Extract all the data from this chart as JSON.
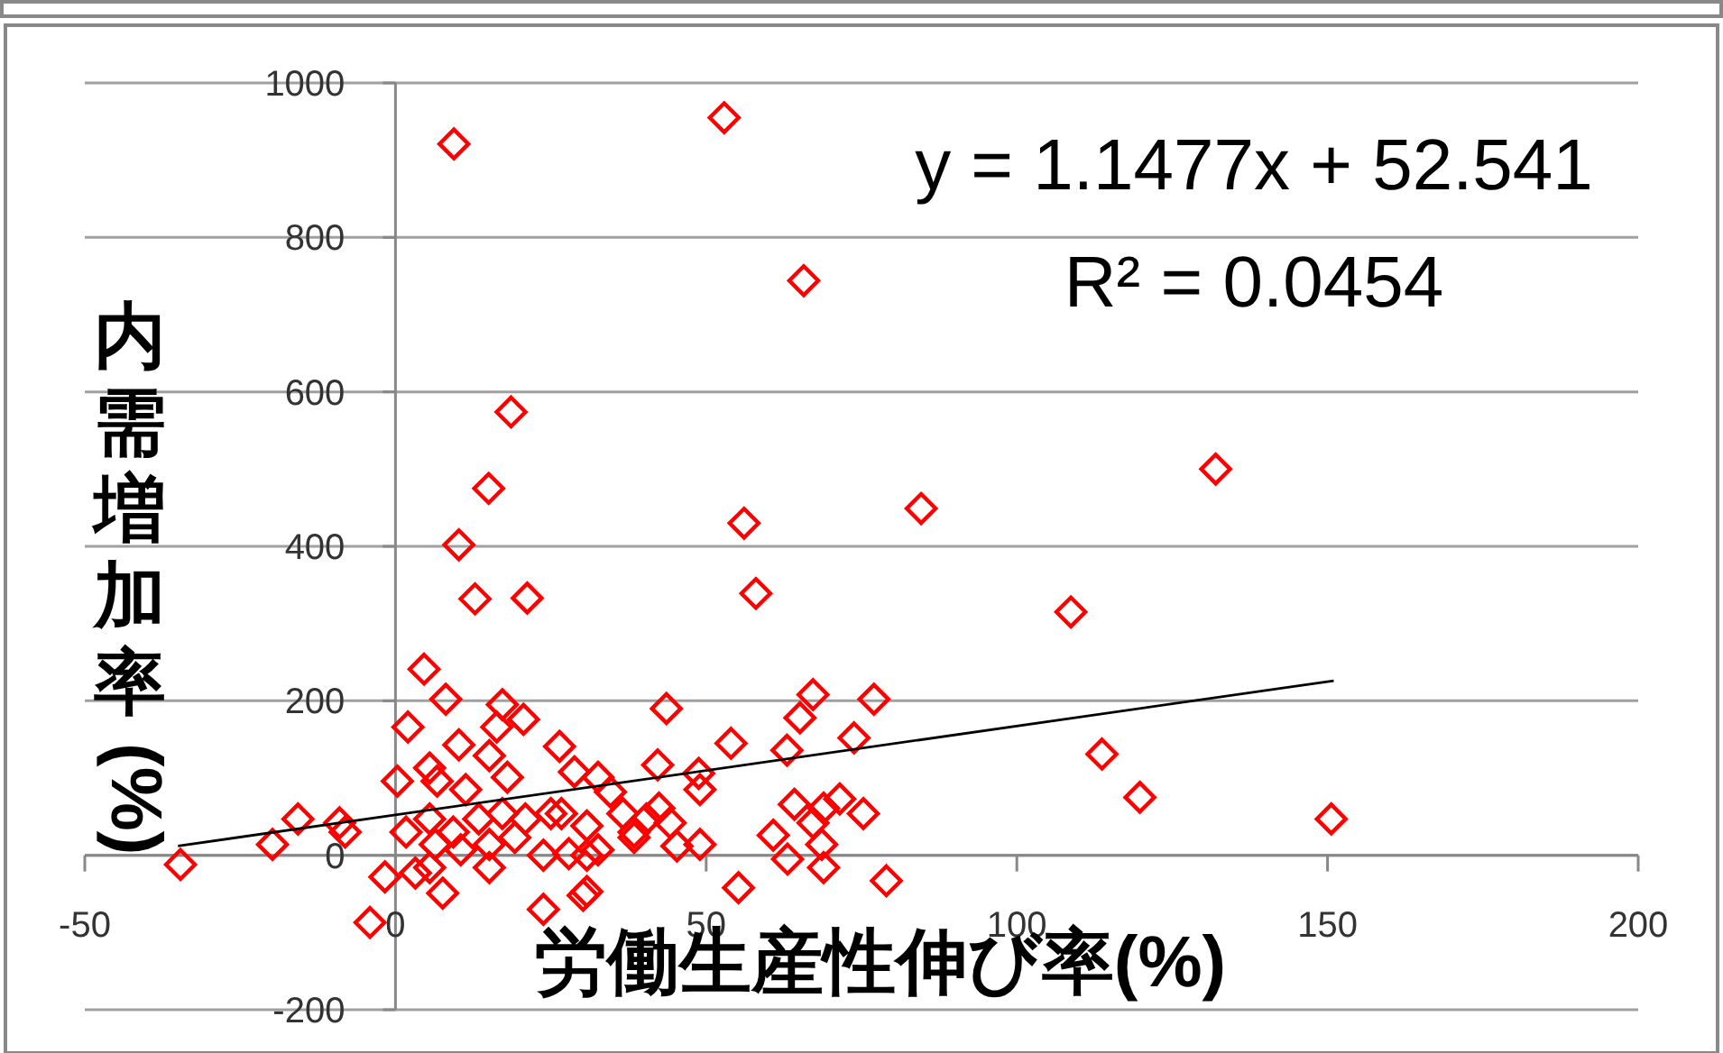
{
  "chart_data": {
    "type": "scatter",
    "xlabel": "労働生産性伸び率(%)",
    "ylabel": "内需増加率(%)",
    "xlim": [
      -50,
      200
    ],
    "ylim": [
      -200,
      1000
    ],
    "xticks": [
      -50,
      0,
      50,
      100,
      150,
      200
    ],
    "yticks": [
      -200,
      0,
      200,
      400,
      600,
      800,
      1000
    ],
    "grid": "y",
    "annotations": [
      "y = 1.1477x + 52.541",
      "R² = 0.0454"
    ],
    "series": [
      {
        "marker": "diamond",
        "color": "#ff0000",
        "x": [
          9.4,
          52.9,
          65.7,
          18.6,
          15.0,
          10.2,
          12.8,
          21.2,
          56.1,
          58.0,
          84.6,
          132,
          108.7,
          113.7,
          119.8,
          150.6,
          43.6,
          67.2,
          77,
          65.1,
          73.8,
          54,
          63,
          42.2,
          48.8,
          49,
          26.4,
          28.8,
          32.6,
          64.2,
          71.5,
          75.3,
          60.8,
          67.2,
          68.6,
          63.1,
          68.9,
          79,
          55.2,
          30.2,
          23.8,
          38.4,
          42.4,
          45.3,
          49,
          40.4,
          44.2,
          36.6,
          26.7,
          30.8,
          32.6,
          27.9,
          34.6,
          68.9,
          -34.6,
          -19.8,
          -15.7,
          -9,
          -8.1,
          -4.1,
          -1.7,
          0.3,
          2,
          4.6,
          8.1,
          7.6,
          1.7,
          3.2,
          5.5,
          6.7,
          10.2,
          15.1,
          17.2,
          20.6,
          16.3,
          18,
          11.3,
          5.5,
          9.3,
          13.4,
          17.2,
          20.9,
          25,
          15.1,
          19.2,
          10.5,
          6.4,
          5.5,
          15.1,
          23.8,
          30.8,
          30.8,
          38.4
        ],
        "values": [
          921,
          955,
          744,
          574,
          475,
          402,
          332,
          333,
          430,
          339,
          449,
          500,
          315,
          131,
          75,
          47,
          190,
          208,
          202,
          178,
          152,
          145,
          136,
          117,
          106,
          85,
          141,
          108,
          101,
          66,
          73,
          54,
          26,
          42,
          14,
          -5,
          -16,
          -33,
          -42,
          -52,
          -70,
          23,
          61,
          12,
          14,
          47,
          42,
          54,
          54,
          38,
          7,
          2,
          82,
          61,
          -12,
          14,
          47,
          42,
          30,
          -87,
          -28,
          96,
          166,
          241,
          202,
          -49,
          30,
          -23,
          113,
          96,
          143,
          129,
          195,
          176,
          166,
          101,
          85,
          47,
          30,
          47,
          54,
          47,
          54,
          14,
          23,
          7,
          14,
          -16,
          -16,
          0,
          -47,
          0,
          30
        ]
      },
      {
        "type": "line",
        "color": "#000000",
        "x": [
          -35,
          151
        ],
        "values": [
          12,
          226
        ]
      }
    ]
  }
}
